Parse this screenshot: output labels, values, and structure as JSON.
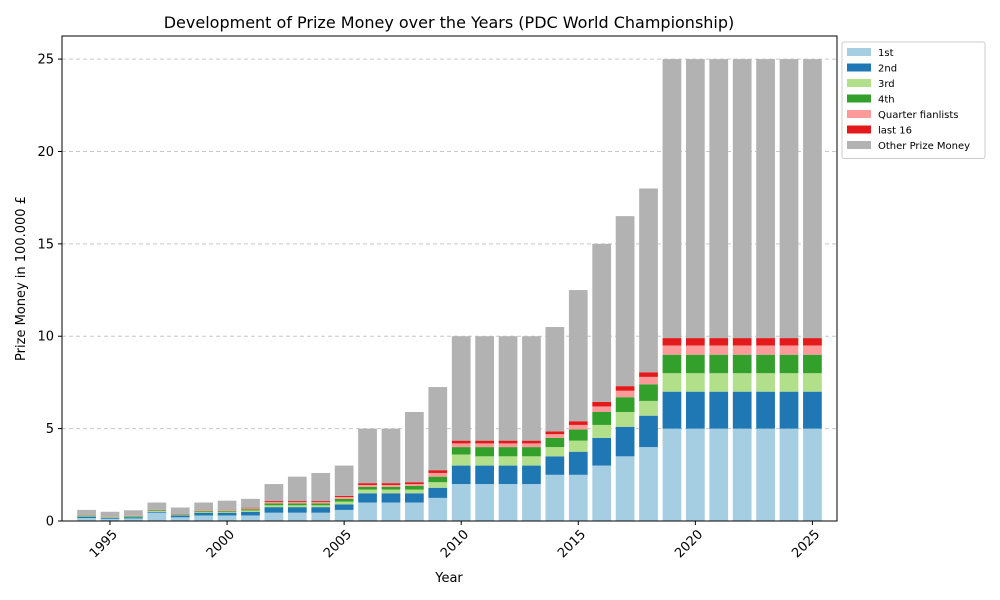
{
  "chart_data": {
    "type": "bar",
    "stacked": true,
    "title": "Development of Prize Money over the Years (PDC World Championship)",
    "xlabel": "Year",
    "ylabel": "Prize Money in 100.000 £",
    "x": [
      1994,
      1995,
      1996,
      1997,
      1998,
      1999,
      2000,
      2001,
      2002,
      2003,
      2004,
      2005,
      2006,
      2007,
      2008,
      2009,
      2010,
      2011,
      2012,
      2013,
      2014,
      2015,
      2016,
      2017,
      2018,
      2019,
      2020,
      2021,
      2022,
      2023,
      2024,
      2025
    ],
    "xticks": [
      1995,
      2000,
      2005,
      2010,
      2015,
      2020,
      2025
    ],
    "xlim": [
      1992.95,
      2026.05
    ],
    "ylim": [
      0,
      26.25
    ],
    "yticks": [
      0,
      5,
      10,
      15,
      20,
      25
    ],
    "grid": "horizontal dashed",
    "legend_position": "outside top-right",
    "series": [
      {
        "name": "1st",
        "color": "#a6cee3",
        "values": [
          0.16,
          0.12,
          0.14,
          0.45,
          0.2,
          0.3,
          0.3,
          0.3,
          0.45,
          0.45,
          0.45,
          0.6,
          1.0,
          1.0,
          1.0,
          1.25,
          2.0,
          2.0,
          2.0,
          2.0,
          2.5,
          2.5,
          3.0,
          3.5,
          4.0,
          5.0,
          5.0,
          5.0,
          5.0,
          5.0,
          5.0,
          5.0
        ]
      },
      {
        "name": "2nd",
        "color": "#1f78b4",
        "values": [
          0.08,
          0.06,
          0.07,
          0.05,
          0.1,
          0.15,
          0.15,
          0.2,
          0.3,
          0.3,
          0.3,
          0.3,
          0.5,
          0.5,
          0.5,
          0.55,
          1.0,
          1.0,
          1.0,
          1.0,
          1.0,
          1.25,
          1.5,
          1.6,
          1.7,
          2.0,
          2.0,
          2.0,
          2.0,
          2.0,
          2.0,
          2.0
        ]
      },
      {
        "name": "3rd",
        "color": "#b2df8a",
        "values": [
          0.04,
          0.03,
          0.035,
          0.04,
          0.03,
          0.05,
          0.05,
          0.07,
          0.1,
          0.1,
          0.1,
          0.15,
          0.2,
          0.2,
          0.2,
          0.3,
          0.6,
          0.5,
          0.5,
          0.5,
          0.5,
          0.6,
          0.7,
          0.8,
          0.8,
          1.0,
          1.0,
          1.0,
          1.0,
          1.0,
          1.0,
          1.0
        ]
      },
      {
        "name": "4th",
        "color": "#33a02c",
        "values": [
          0.03,
          0.02,
          0.03,
          0.03,
          0.02,
          0.05,
          0.05,
          0.07,
          0.1,
          0.1,
          0.1,
          0.15,
          0.15,
          0.15,
          0.2,
          0.3,
          0.4,
          0.5,
          0.5,
          0.5,
          0.5,
          0.6,
          0.7,
          0.8,
          0.9,
          1.0,
          1.0,
          1.0,
          1.0,
          1.0,
          1.0,
          1.0
        ]
      },
      {
        "name": "Quarter fianlists",
        "color": "#fb9a99",
        "values": [
          0.02,
          0.02,
          0.02,
          0.02,
          0.02,
          0.04,
          0.04,
          0.05,
          0.08,
          0.08,
          0.08,
          0.1,
          0.1,
          0.1,
          0.1,
          0.2,
          0.2,
          0.2,
          0.2,
          0.2,
          0.2,
          0.25,
          0.3,
          0.35,
          0.4,
          0.5,
          0.5,
          0.5,
          0.5,
          0.5,
          0.5,
          0.5
        ]
      },
      {
        "name": "last 16",
        "color": "#e31a1c",
        "values": [
          0.01,
          0.01,
          0.01,
          0.01,
          0.01,
          0.02,
          0.02,
          0.03,
          0.05,
          0.05,
          0.05,
          0.06,
          0.1,
          0.1,
          0.1,
          0.15,
          0.15,
          0.15,
          0.15,
          0.15,
          0.15,
          0.2,
          0.25,
          0.25,
          0.25,
          0.4,
          0.4,
          0.4,
          0.4,
          0.4,
          0.4,
          0.4
        ]
      },
      {
        "name": "Other Prize Money",
        "color": "#b2b2b2",
        "values": [
          0.26,
          0.24,
          0.275,
          0.4,
          0.35,
          0.39,
          0.49,
          0.48,
          0.92,
          1.32,
          1.52,
          1.64,
          2.95,
          2.95,
          3.8,
          4.5,
          5.65,
          5.65,
          5.65,
          5.65,
          5.65,
          7.1,
          8.55,
          9.2,
          9.95,
          15.1,
          15.1,
          15.1,
          15.1,
          15.1,
          15.1,
          15.1
        ]
      }
    ]
  }
}
